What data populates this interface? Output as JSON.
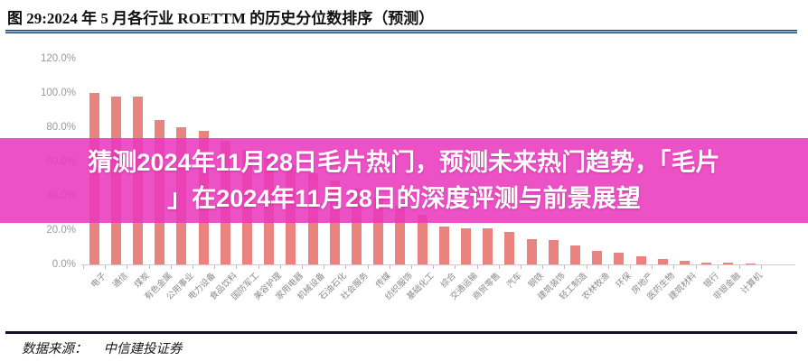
{
  "header": {
    "title": "图 29:2024 年 5 月各行业 ROETTM 的历史分位数排序（预测）"
  },
  "overlay": {
    "line1": "猜测2024年11月28日毛片热门，预测未来热门趋势，「毛片",
    "line2": "」在2024年11月28日的深度评测与前景展望"
  },
  "footer": {
    "source_label": "数据来源：",
    "source_value": "中信建投证券"
  },
  "colors": {
    "bar": "#e8837f",
    "overlay_banner": "#e939bd",
    "overlay_text": "#ffffff",
    "title_rule": "#1f3864",
    "axis_text": "#9b9b9b"
  },
  "chart_data": {
    "type": "bar",
    "title": "图 29:2024 年 5 月各行业 ROETTM 的历史分位数排序（预测）",
    "xlabel": "",
    "ylabel": "",
    "ylim": [
      0,
      120
    ],
    "grid": false,
    "legend": "none",
    "yticks": [
      "0.0%",
      "20.0%",
      "40.0%",
      "60.0%",
      "80.0%",
      "100.0%",
      "120.0%"
    ],
    "categories": [
      "电子",
      "通信",
      "煤炭",
      "有色金属",
      "公用事业",
      "电力设备",
      "食品饮料",
      "国防军工",
      "美容护理",
      "家用电器",
      "机械设备",
      "石油石化",
      "社会服务",
      "传媒",
      "纺织服饰",
      "基础化工",
      "综合",
      "交通运输",
      "商贸零售",
      "汽车",
      "钢铁",
      "建筑装饰",
      "轻工制造",
      "农林牧渔",
      "环保",
      "房地产",
      "医药生物",
      "建筑材料",
      "银行",
      "非银金融",
      "计算机"
    ],
    "values": [
      100,
      98,
      98,
      84,
      80,
      78,
      72,
      67,
      62,
      58,
      53,
      49,
      44,
      39,
      34,
      29,
      22,
      21,
      21,
      19,
      15,
      14,
      11,
      8,
      7,
      5,
      3,
      2,
      1,
      1,
      0.5
    ]
  }
}
